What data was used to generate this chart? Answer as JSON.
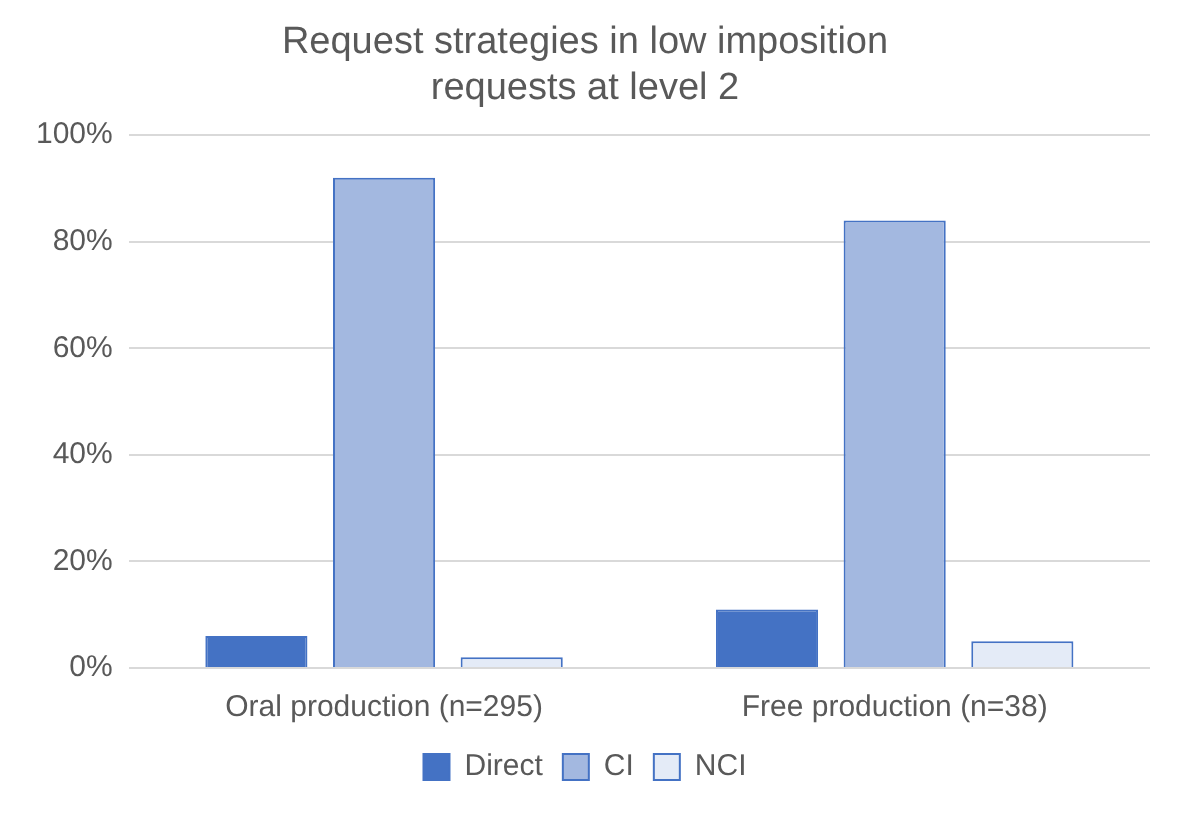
{
  "chart_data": {
    "type": "bar",
    "title": "Request strategies in low imposition requests at level 2",
    "categories": [
      "Oral production (n=295)",
      "Free production (n=38)"
    ],
    "series": [
      {
        "name": "Direct",
        "color": "#4472c4",
        "values": [
          6,
          11
        ]
      },
      {
        "name": "CI",
        "color": "#a3b8e0",
        "values": [
          92,
          84
        ]
      },
      {
        "name": "NCI",
        "color": "#e4ebf7",
        "values": [
          2,
          5
        ]
      }
    ],
    "ylim": [
      0,
      100
    ],
    "yticks": [
      {
        "value": 0,
        "label": "0%"
      },
      {
        "value": 20,
        "label": "20%"
      },
      {
        "value": 40,
        "label": "40%"
      },
      {
        "value": 60,
        "label": "60%"
      },
      {
        "value": 80,
        "label": "80%"
      },
      {
        "value": 100,
        "label": "100%"
      }
    ],
    "grid": "y",
    "legend": "bottom"
  }
}
